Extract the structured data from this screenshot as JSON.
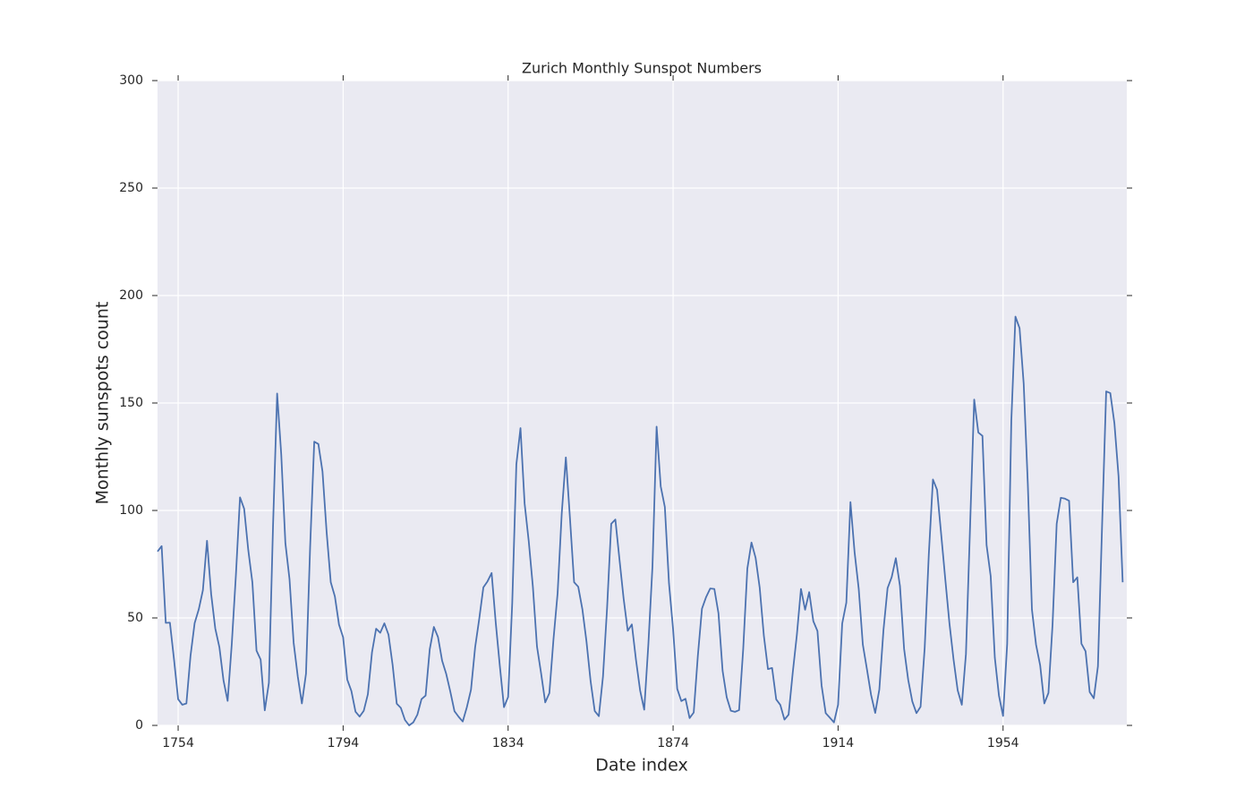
{
  "chart_data": {
    "type": "line",
    "title": "Zurich Monthly Sunspot Numbers",
    "xlabel": "Date index",
    "ylabel": "Monthly sunspots count",
    "x": [
      1749,
      1750,
      1751,
      1752,
      1753,
      1754,
      1755,
      1756,
      1757,
      1758,
      1759,
      1760,
      1761,
      1762,
      1763,
      1764,
      1765,
      1766,
      1767,
      1768,
      1769,
      1770,
      1771,
      1772,
      1773,
      1774,
      1775,
      1776,
      1777,
      1778,
      1779,
      1780,
      1781,
      1782,
      1783,
      1784,
      1785,
      1786,
      1787,
      1788,
      1789,
      1790,
      1791,
      1792,
      1793,
      1794,
      1795,
      1796,
      1797,
      1798,
      1799,
      1800,
      1801,
      1802,
      1803,
      1804,
      1805,
      1806,
      1807,
      1808,
      1809,
      1810,
      1811,
      1812,
      1813,
      1814,
      1815,
      1816,
      1817,
      1818,
      1819,
      1820,
      1821,
      1822,
      1823,
      1824,
      1825,
      1826,
      1827,
      1828,
      1829,
      1830,
      1831,
      1832,
      1833,
      1834,
      1835,
      1836,
      1837,
      1838,
      1839,
      1840,
      1841,
      1842,
      1843,
      1844,
      1845,
      1846,
      1847,
      1848,
      1849,
      1850,
      1851,
      1852,
      1853,
      1854,
      1855,
      1856,
      1857,
      1858,
      1859,
      1860,
      1861,
      1862,
      1863,
      1864,
      1865,
      1866,
      1867,
      1868,
      1869,
      1870,
      1871,
      1872,
      1873,
      1874,
      1875,
      1876,
      1877,
      1878,
      1879,
      1880,
      1881,
      1882,
      1883,
      1884,
      1885,
      1886,
      1887,
      1888,
      1889,
      1890,
      1891,
      1892,
      1893,
      1894,
      1895,
      1896,
      1897,
      1898,
      1899,
      1900,
      1901,
      1902,
      1903,
      1904,
      1905,
      1906,
      1907,
      1908,
      1909,
      1910,
      1911,
      1912,
      1913,
      1914,
      1915,
      1916,
      1917,
      1918,
      1919,
      1920,
      1921,
      1922,
      1923,
      1924,
      1925,
      1926,
      1927,
      1928,
      1929,
      1930,
      1931,
      1932,
      1933,
      1934,
      1935,
      1936,
      1937,
      1938,
      1939,
      1940,
      1941,
      1942,
      1943,
      1944,
      1945,
      1946,
      1947,
      1948,
      1949,
      1950,
      1951,
      1952,
      1953,
      1954,
      1955,
      1956,
      1957,
      1958,
      1959,
      1960,
      1961,
      1962,
      1963,
      1964,
      1965,
      1966,
      1967,
      1968,
      1969,
      1970,
      1971,
      1972,
      1973,
      1974,
      1975,
      1976,
      1977,
      1978,
      1979,
      1980,
      1981,
      1982,
      1983
    ],
    "series": [
      {
        "color": "#4c72b0",
        "values": [
          80.9,
          83.4,
          47.7,
          47.8,
          30.7,
          12.2,
          9.6,
          10.2,
          32.4,
          47.6,
          54,
          62.9,
          85.9,
          61.2,
          45.1,
          36.4,
          20.9,
          11.4,
          37.8,
          69.8,
          106.1,
          100.8,
          81.6,
          66.5,
          34.8,
          30.6,
          7,
          19.8,
          92.5,
          154.4,
          125.9,
          84.8,
          68.1,
          38.5,
          22.8,
          10.2,
          24.1,
          82.9,
          132,
          130.9,
          118.1,
          89.9,
          66.6,
          60,
          46.9,
          41,
          21.3,
          16,
          6.4,
          4.1,
          6.8,
          14.5,
          34,
          45,
          43.1,
          47.5,
          42.2,
          28.1,
          10.1,
          8.1,
          2.5,
          0,
          1.4,
          5,
          12.2,
          13.9,
          35.4,
          45.8,
          41.1,
          30.1,
          23.9,
          15.6,
          6.6,
          4,
          1.8,
          8.5,
          16.6,
          36.3,
          49.6,
          64.2,
          67,
          70.9,
          47.8,
          27.5,
          8.5,
          13.2,
          56.9,
          121.5,
          138.3,
          103.2,
          85.7,
          64.6,
          36.7,
          24.2,
          10.7,
          15,
          40.1,
          61.5,
          98.5,
          124.7,
          96.3,
          66.6,
          64.5,
          54.1,
          39,
          20.6,
          6.7,
          4.3,
          22.7,
          54.8,
          93.8,
          95.8,
          77.2,
          59.1,
          44,
          47,
          30.5,
          16.3,
          7.3,
          37.6,
          74,
          139,
          111.2,
          101.6,
          66.2,
          44.7,
          17,
          11.3,
          12.4,
          3.4,
          6,
          32.3,
          54.3,
          59.7,
          63.7,
          63.5,
          52.2,
          25.4,
          13.1,
          6.8,
          6.3,
          7.1,
          35.6,
          73,
          85.1,
          78,
          64,
          41.8,
          26.2,
          26.7,
          12.1,
          9.5,
          2.7,
          5,
          24.4,
          42,
          63.5,
          53.8,
          62,
          48.5,
          43.9,
          18.6,
          5.7,
          3.6,
          1.4,
          9.6,
          47.4,
          57.1,
          103.9,
          80.6,
          63.6,
          37.6,
          26.1,
          14.2,
          5.8,
          16.7,
          44.3,
          63.9,
          69,
          77.8,
          64.9,
          35.7,
          21.2,
          11.1,
          5.7,
          8.7,
          36.1,
          79.7,
          114.4,
          109.6,
          88.8,
          67.8,
          47.5,
          30.6,
          16.3,
          9.6,
          33.2,
          92.6,
          151.6,
          136.3,
          134.7,
          83.9,
          69.4,
          31.5,
          13.9,
          4.4,
          38,
          141.7,
          190.2,
          184.8,
          159,
          112.3,
          53.9,
          37.5,
          27.9,
          10.2,
          15.1,
          47,
          93.8,
          105.9,
          105.5,
          104.5,
          66.6,
          68.9,
          38,
          34.5,
          15.5,
          12.6,
          27.5,
          92.5,
          155.4,
          154.6,
          140.5,
          115.9,
          66.6
        ]
      }
    ],
    "xlim": [
      1749,
      1984
    ],
    "xticks": [
      1754,
      1794,
      1834,
      1874,
      1914,
      1954
    ],
    "ylim": [
      0,
      300
    ],
    "yticks": [
      0,
      50,
      100,
      150,
      200,
      250,
      300
    ],
    "grid": true
  }
}
